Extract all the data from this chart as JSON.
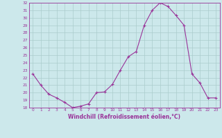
{
  "x": [
    0,
    1,
    2,
    3,
    4,
    5,
    6,
    7,
    8,
    9,
    10,
    11,
    12,
    13,
    14,
    15,
    16,
    17,
    18,
    19,
    20,
    21,
    22,
    23
  ],
  "y": [
    22.5,
    21.0,
    19.8,
    19.3,
    18.7,
    18.0,
    18.2,
    18.5,
    20.0,
    20.1,
    21.1,
    23.0,
    24.8,
    25.5,
    29.0,
    31.0,
    32.0,
    31.5,
    30.3,
    29.0,
    22.5,
    21.3,
    19.3,
    19.3
  ],
  "line_color": "#993399",
  "marker": "+",
  "marker_size": 3,
  "bg_color": "#cce8eb",
  "grid_color": "#aacccc",
  "ylim": [
    18,
    32
  ],
  "yticks": [
    18,
    19,
    20,
    21,
    22,
    23,
    24,
    25,
    26,
    27,
    28,
    29,
    30,
    31,
    32
  ],
  "xticks": [
    0,
    1,
    2,
    3,
    4,
    5,
    6,
    7,
    8,
    9,
    10,
    11,
    12,
    13,
    14,
    15,
    16,
    17,
    18,
    19,
    20,
    21,
    22,
    23
  ],
  "xlabel": "Windchill (Refroidissement éolien,°C)",
  "xlim": [
    -0.5,
    23.5
  ]
}
